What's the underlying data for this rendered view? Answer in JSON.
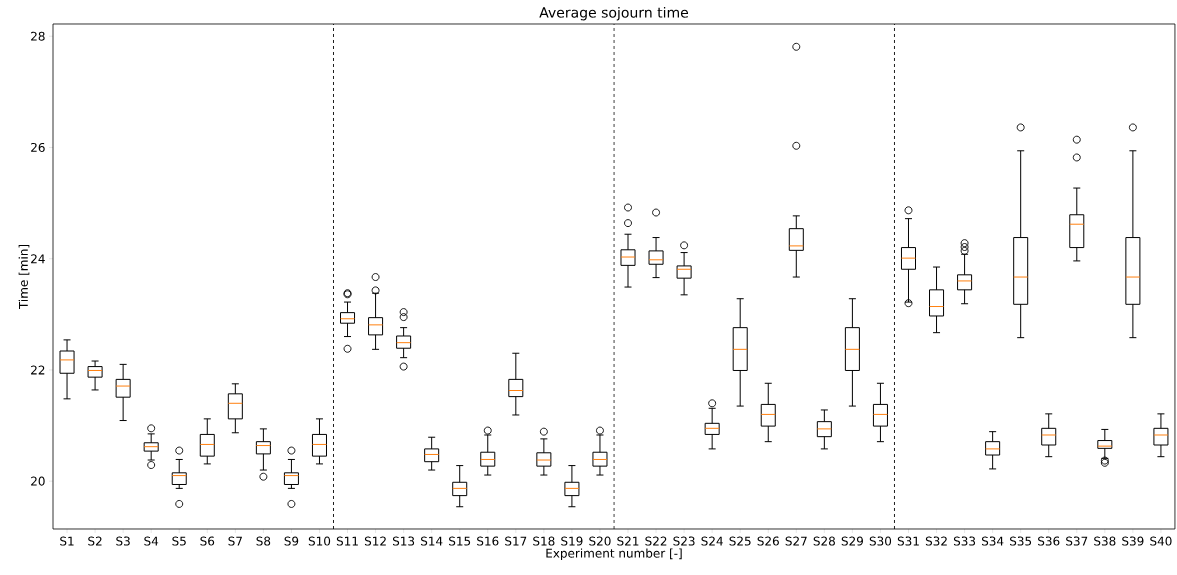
{
  "chart_data": {
    "type": "box",
    "title": "Average sojourn time",
    "xlabel": "Experiment number [-]",
    "ylabel": "Time [min]",
    "categories": [
      "S1",
      "S2",
      "S3",
      "S4",
      "S5",
      "S6",
      "S7",
      "S8",
      "S9",
      "S10",
      "S11",
      "S12",
      "S13",
      "S14",
      "S15",
      "S16",
      "S17",
      "S18",
      "S19",
      "S20",
      "S21",
      "S22",
      "S23",
      "S24",
      "S25",
      "S26",
      "S27",
      "S28",
      "S29",
      "S30",
      "S31",
      "S32",
      "S33",
      "S34",
      "S35",
      "S36",
      "S37",
      "S38",
      "S39",
      "S40"
    ],
    "ylim": [
      19.14,
      28.22
    ],
    "yticks": [
      20,
      22,
      24,
      26,
      28
    ],
    "grid": false,
    "marker": "circle",
    "boxes": [
      {
        "low": 21.48,
        "q1": 21.94,
        "median": 22.18,
        "q3": 22.34,
        "high": 22.54
      },
      {
        "low": 21.64,
        "q1": 21.87,
        "median": 21.99,
        "q3": 22.06,
        "high": 22.16
      },
      {
        "low": 21.09,
        "q1": 21.51,
        "median": 21.71,
        "q3": 21.83,
        "high": 22.1
      },
      {
        "low": 20.38,
        "q1": 20.54,
        "median": 20.62,
        "q3": 20.69,
        "high": 20.85,
        "outliers": [
          20.95,
          20.29
        ]
      },
      {
        "low": 19.87,
        "q1": 19.94,
        "median": 20.1,
        "q3": 20.15,
        "high": 20.39,
        "outliers": [
          20.55,
          19.59
        ]
      },
      {
        "low": 20.31,
        "q1": 20.45,
        "median": 20.66,
        "q3": 20.84,
        "high": 21.12
      },
      {
        "low": 20.87,
        "q1": 21.12,
        "median": 21.4,
        "q3": 21.57,
        "high": 21.75
      },
      {
        "low": 20.2,
        "q1": 20.49,
        "median": 20.64,
        "q3": 20.71,
        "high": 20.94,
        "outliers": [
          20.08
        ]
      },
      {
        "low": 19.87,
        "q1": 19.94,
        "median": 20.1,
        "q3": 20.15,
        "high": 20.39,
        "outliers": [
          20.55,
          19.59
        ]
      },
      {
        "low": 20.31,
        "q1": 20.45,
        "median": 20.66,
        "q3": 20.84,
        "high": 21.12
      },
      {
        "low": 22.6,
        "q1": 22.84,
        "median": 22.92,
        "q3": 23.03,
        "high": 23.22,
        "outliers": [
          23.38,
          23.36,
          22.38
        ]
      },
      {
        "low": 22.37,
        "q1": 22.63,
        "median": 22.81,
        "q3": 22.94,
        "high": 23.38,
        "outliers": [
          23.67,
          23.43
        ]
      },
      {
        "low": 22.22,
        "q1": 22.39,
        "median": 22.49,
        "q3": 22.61,
        "high": 22.76,
        "outliers": [
          23.04,
          22.95,
          22.06
        ]
      },
      {
        "low": 20.2,
        "q1": 20.35,
        "median": 20.48,
        "q3": 20.58,
        "high": 20.79
      },
      {
        "low": 19.54,
        "q1": 19.74,
        "median": 19.87,
        "q3": 19.98,
        "high": 20.28
      },
      {
        "low": 20.11,
        "q1": 20.27,
        "median": 20.39,
        "q3": 20.52,
        "high": 20.83,
        "outliers": [
          20.91
        ]
      },
      {
        "low": 21.19,
        "q1": 21.52,
        "median": 21.63,
        "q3": 21.83,
        "high": 22.3
      },
      {
        "low": 20.11,
        "q1": 20.27,
        "median": 20.38,
        "q3": 20.51,
        "high": 20.76,
        "outliers": [
          20.89
        ]
      },
      {
        "low": 19.54,
        "q1": 19.74,
        "median": 19.87,
        "q3": 19.98,
        "high": 20.28
      },
      {
        "low": 20.11,
        "q1": 20.27,
        "median": 20.39,
        "q3": 20.52,
        "high": 20.83,
        "outliers": [
          20.91
        ]
      },
      {
        "low": 23.49,
        "q1": 23.88,
        "median": 24.03,
        "q3": 24.16,
        "high": 24.44,
        "outliers": [
          24.92,
          24.64
        ]
      },
      {
        "low": 23.66,
        "q1": 23.9,
        "median": 23.98,
        "q3": 24.14,
        "high": 24.38,
        "outliers": [
          24.83
        ]
      },
      {
        "low": 23.35,
        "q1": 23.65,
        "median": 23.81,
        "q3": 23.87,
        "high": 24.11,
        "outliers": [
          24.24
        ]
      },
      {
        "low": 20.58,
        "q1": 20.84,
        "median": 20.95,
        "q3": 21.04,
        "high": 21.31,
        "outliers": [
          21.4
        ]
      },
      {
        "low": 21.35,
        "q1": 21.99,
        "median": 22.37,
        "q3": 22.76,
        "high": 23.28
      },
      {
        "low": 20.71,
        "q1": 20.99,
        "median": 21.2,
        "q3": 21.38,
        "high": 21.76
      },
      {
        "low": 23.67,
        "q1": 24.15,
        "median": 24.23,
        "q3": 24.54,
        "high": 24.77,
        "outliers": [
          27.81,
          26.03
        ]
      },
      {
        "low": 20.58,
        "q1": 20.8,
        "median": 20.94,
        "q3": 21.07,
        "high": 21.28
      },
      {
        "low": 21.35,
        "q1": 21.99,
        "median": 22.37,
        "q3": 22.76,
        "high": 23.28
      },
      {
        "low": 20.71,
        "q1": 20.99,
        "median": 21.2,
        "q3": 21.38,
        "high": 21.76
      },
      {
        "low": 23.22,
        "q1": 23.81,
        "median": 24.01,
        "q3": 24.2,
        "high": 24.72,
        "outliers": [
          24.87,
          23.2
        ]
      },
      {
        "low": 22.67,
        "q1": 22.97,
        "median": 23.14,
        "q3": 23.44,
        "high": 23.85
      },
      {
        "low": 23.19,
        "q1": 23.44,
        "median": 23.6,
        "q3": 23.71,
        "high": 24.08,
        "outliers": [
          24.28,
          24.21,
          24.14
        ]
      },
      {
        "low": 20.22,
        "q1": 20.47,
        "median": 20.58,
        "q3": 20.71,
        "high": 20.89
      },
      {
        "low": 22.58,
        "q1": 23.18,
        "median": 23.67,
        "q3": 24.38,
        "high": 25.94,
        "outliers": [
          26.36
        ]
      },
      {
        "low": 20.44,
        "q1": 20.65,
        "median": 20.83,
        "q3": 20.95,
        "high": 21.21
      },
      {
        "low": 23.96,
        "q1": 24.2,
        "median": 24.62,
        "q3": 24.79,
        "high": 25.27,
        "outliers": [
          26.14,
          25.82
        ]
      },
      {
        "low": 20.41,
        "q1": 20.59,
        "median": 20.63,
        "q3": 20.73,
        "high": 20.93,
        "outliers": [
          20.37,
          20.33
        ]
      },
      {
        "low": 22.58,
        "q1": 23.18,
        "median": 23.67,
        "q3": 24.38,
        "high": 25.94,
        "outliers": [
          26.36
        ]
      },
      {
        "low": 20.44,
        "q1": 20.65,
        "median": 20.83,
        "q3": 20.95,
        "high": 21.21
      }
    ]
  }
}
